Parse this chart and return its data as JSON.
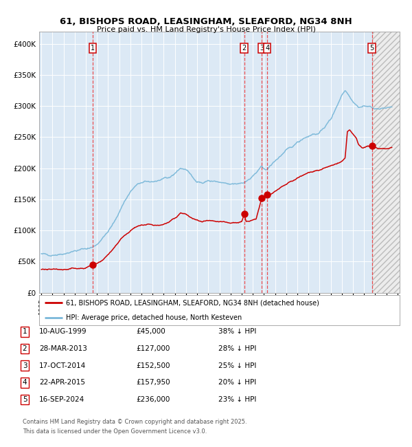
{
  "title_line1": "61, BISHOPS ROAD, LEASINGHAM, SLEAFORD, NG34 8NH",
  "title_line2": "Price paid vs. HM Land Registry's House Price Index (HPI)",
  "ylim": [
    0,
    420000
  ],
  "yticks": [
    0,
    50000,
    100000,
    150000,
    200000,
    250000,
    300000,
    350000,
    400000
  ],
  "ytick_labels": [
    "£0",
    "£50K",
    "£100K",
    "£150K",
    "£200K",
    "£250K",
    "£300K",
    "£350K",
    "£400K"
  ],
  "background_color": "#ffffff",
  "plot_bg_color": "#dce9f5",
  "grid_color": "#ffffff",
  "hpi_line_color": "#7ab8d9",
  "price_line_color": "#cc0000",
  "sale_marker_color": "#cc0000",
  "vline_color": "#ee3333",
  "sales": [
    {
      "num": 1,
      "date_x": 1999.606,
      "price": 45000,
      "pct": "38%",
      "label": "10-AUG-1999",
      "price_label": "£45,000"
    },
    {
      "num": 2,
      "date_x": 2013.236,
      "price": 127000,
      "pct": "28%",
      "label": "28-MAR-2013",
      "price_label": "£127,000"
    },
    {
      "num": 3,
      "date_x": 2014.789,
      "price": 152500,
      "pct": "25%",
      "label": "17-OCT-2014",
      "price_label": "£152,500"
    },
    {
      "num": 4,
      "date_x": 2015.306,
      "price": 157950,
      "pct": "20%",
      "label": "22-APR-2015",
      "price_label": "£157,950"
    },
    {
      "num": 5,
      "date_x": 2024.708,
      "price": 236000,
      "pct": "23%",
      "label": "16-SEP-2024",
      "price_label": "£236,000"
    }
  ],
  "footer_line1": "Contains HM Land Registry data © Crown copyright and database right 2025.",
  "footer_line2": "This data is licensed under the Open Government Licence v3.0.",
  "legend_label1": "61, BISHOPS ROAD, LEASINGHAM, SLEAFORD, NG34 8NH (detached house)",
  "legend_label2": "HPI: Average price, detached house, North Kesteven",
  "xmin": 1994.8,
  "xmax": 2027.2,
  "hpi_anchors": [
    [
      1995.0,
      62000
    ],
    [
      1995.5,
      61500
    ],
    [
      1996.0,
      61000
    ],
    [
      1996.5,
      61500
    ],
    [
      1997.0,
      63000
    ],
    [
      1997.5,
      65000
    ],
    [
      1998.0,
      67000
    ],
    [
      1998.5,
      69000
    ],
    [
      1999.0,
      71000
    ],
    [
      1999.6,
      73000
    ],
    [
      2000.0,
      78000
    ],
    [
      2000.5,
      88000
    ],
    [
      2001.0,
      98000
    ],
    [
      2001.5,
      112000
    ],
    [
      2002.0,
      130000
    ],
    [
      2002.5,
      148000
    ],
    [
      2003.0,
      162000
    ],
    [
      2003.5,
      172000
    ],
    [
      2004.0,
      177000
    ],
    [
      2004.5,
      178000
    ],
    [
      2005.0,
      179000
    ],
    [
      2005.5,
      180000
    ],
    [
      2006.0,
      182000
    ],
    [
      2006.5,
      185000
    ],
    [
      2007.0,
      192000
    ],
    [
      2007.5,
      200000
    ],
    [
      2008.0,
      198000
    ],
    [
      2008.5,
      188000
    ],
    [
      2009.0,
      179000
    ],
    [
      2009.5,
      176000
    ],
    [
      2010.0,
      180000
    ],
    [
      2010.5,
      179000
    ],
    [
      2011.0,
      177000
    ],
    [
      2011.5,
      175000
    ],
    [
      2012.0,
      174000
    ],
    [
      2012.5,
      175000
    ],
    [
      2013.0,
      177000
    ],
    [
      2013.25,
      178000
    ],
    [
      2013.5,
      180000
    ],
    [
      2013.75,
      183000
    ],
    [
      2014.0,
      187000
    ],
    [
      2014.5,
      196000
    ],
    [
      2014.8,
      202000
    ],
    [
      2015.0,
      200000
    ],
    [
      2015.3,
      198000
    ],
    [
      2015.5,
      202000
    ],
    [
      2016.0,
      212000
    ],
    [
      2016.5,
      220000
    ],
    [
      2017.0,
      228000
    ],
    [
      2017.5,
      234000
    ],
    [
      2018.0,
      242000
    ],
    [
      2018.5,
      248000
    ],
    [
      2019.0,
      252000
    ],
    [
      2019.5,
      255000
    ],
    [
      2020.0,
      256000
    ],
    [
      2020.5,
      268000
    ],
    [
      2021.0,
      278000
    ],
    [
      2021.5,
      298000
    ],
    [
      2022.0,
      318000
    ],
    [
      2022.3,
      325000
    ],
    [
      2022.5,
      322000
    ],
    [
      2023.0,
      308000
    ],
    [
      2023.5,
      298000
    ],
    [
      2024.0,
      300000
    ],
    [
      2024.7,
      298000
    ],
    [
      2025.0,
      296000
    ],
    [
      2025.5,
      295000
    ],
    [
      2026.0,
      297000
    ],
    [
      2026.5,
      299000
    ]
  ],
  "price_anchors": [
    [
      1995.0,
      37000
    ],
    [
      1995.5,
      37500
    ],
    [
      1996.0,
      37000
    ],
    [
      1996.5,
      37500
    ],
    [
      1997.0,
      38000
    ],
    [
      1997.5,
      38500
    ],
    [
      1998.0,
      39000
    ],
    [
      1998.5,
      39500
    ],
    [
      1999.0,
      40000
    ],
    [
      1999.606,
      45000
    ],
    [
      2000.0,
      47000
    ],
    [
      2000.5,
      53000
    ],
    [
      2001.0,
      61000
    ],
    [
      2001.5,
      72000
    ],
    [
      2002.0,
      83000
    ],
    [
      2002.5,
      93000
    ],
    [
      2003.0,
      100000
    ],
    [
      2003.5,
      105000
    ],
    [
      2004.0,
      108000
    ],
    [
      2004.5,
      110000
    ],
    [
      2005.0,
      109000
    ],
    [
      2005.5,
      108000
    ],
    [
      2006.0,
      110000
    ],
    [
      2006.5,
      113000
    ],
    [
      2007.0,
      120000
    ],
    [
      2007.5,
      128000
    ],
    [
      2008.0,
      126000
    ],
    [
      2008.5,
      120000
    ],
    [
      2009.0,
      116000
    ],
    [
      2009.5,
      114000
    ],
    [
      2010.0,
      115000
    ],
    [
      2010.5,
      114000
    ],
    [
      2011.0,
      114000
    ],
    [
      2011.5,
      113000
    ],
    [
      2012.0,
      112000
    ],
    [
      2012.5,
      113000
    ],
    [
      2013.0,
      114000
    ],
    [
      2013.236,
      127000
    ],
    [
      2013.4,
      115000
    ],
    [
      2013.7,
      114000
    ],
    [
      2014.0,
      116000
    ],
    [
      2014.3,
      118000
    ],
    [
      2014.789,
      152500
    ],
    [
      2015.0,
      154000
    ],
    [
      2015.306,
      157950
    ],
    [
      2015.5,
      158000
    ],
    [
      2016.0,
      162000
    ],
    [
      2016.5,
      168000
    ],
    [
      2017.0,
      174000
    ],
    [
      2017.5,
      179000
    ],
    [
      2018.0,
      184000
    ],
    [
      2018.5,
      188000
    ],
    [
      2019.0,
      193000
    ],
    [
      2019.5,
      196000
    ],
    [
      2020.0,
      197000
    ],
    [
      2020.5,
      200000
    ],
    [
      2021.0,
      204000
    ],
    [
      2021.5,
      207000
    ],
    [
      2022.0,
      210000
    ],
    [
      2022.3,
      215000
    ],
    [
      2022.5,
      258000
    ],
    [
      2022.7,
      262000
    ],
    [
      2023.0,
      254000
    ],
    [
      2023.3,
      248000
    ],
    [
      2023.5,
      238000
    ],
    [
      2023.8,
      234000
    ],
    [
      2024.0,
      234000
    ],
    [
      2024.708,
      236000
    ],
    [
      2025.0,
      233000
    ],
    [
      2025.5,
      232000
    ],
    [
      2026.0,
      232000
    ],
    [
      2026.5,
      233000
    ]
  ]
}
